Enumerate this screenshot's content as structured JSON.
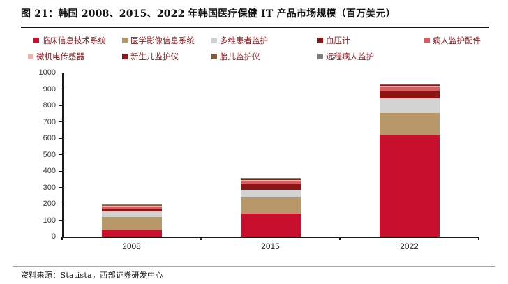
{
  "title": "图 21：韩国 2008、2015、2022 年韩国医疗保健 IT 产品市场规模（百万美元）",
  "source": "资料来源：Statista，西部证券研发中心",
  "colors": {
    "legend_text": "#8C181D",
    "title_text": "#111111",
    "axis_line": "#1a1a1a",
    "axis_text": "#3a3a3a",
    "source_divider": "#a8a8a8"
  },
  "chart_data": {
    "type": "bar",
    "stacked": true,
    "title": "韩国 2008、2015、2022 年韩国医疗保健 IT 产品市场规模（百万美元）",
    "categories": [
      "2008",
      "2015",
      "2022"
    ],
    "series": [
      {
        "name": "临床信息技术系统",
        "color": "#C8102E",
        "values": [
          38,
          140,
          618
        ]
      },
      {
        "name": "医学影像信息系统",
        "color": "#B89869",
        "values": [
          80,
          100,
          137
        ]
      },
      {
        "name": "多维患者监护",
        "color": "#D2D2D2",
        "values": [
          36,
          47,
          88
        ]
      },
      {
        "name": "血压计",
        "color": "#8E1313",
        "values": [
          18,
          31,
          46
        ]
      },
      {
        "name": "病人监护配件",
        "color": "#D75C63",
        "values": [
          10,
          17,
          20
        ]
      },
      {
        "name": "微机电传感器",
        "color": "#EFB2AB",
        "values": [
          6,
          10,
          10
        ]
      },
      {
        "name": "新生儿监护仪",
        "color": "#9E1118",
        "values": [
          3,
          4,
          4
        ]
      },
      {
        "name": "胎儿监护仪",
        "color": "#855C3A",
        "values": [
          2,
          3,
          3
        ]
      },
      {
        "name": "远程病人监护",
        "color": "#7F7F7F",
        "values": [
          3,
          6,
          6
        ]
      }
    ],
    "xlabel": "",
    "ylabel": "",
    "ylim": [
      0,
      1000
    ],
    "ytick_step": 100,
    "grid": false,
    "legend_position": "top",
    "legend_rows": [
      5,
      4
    ]
  }
}
